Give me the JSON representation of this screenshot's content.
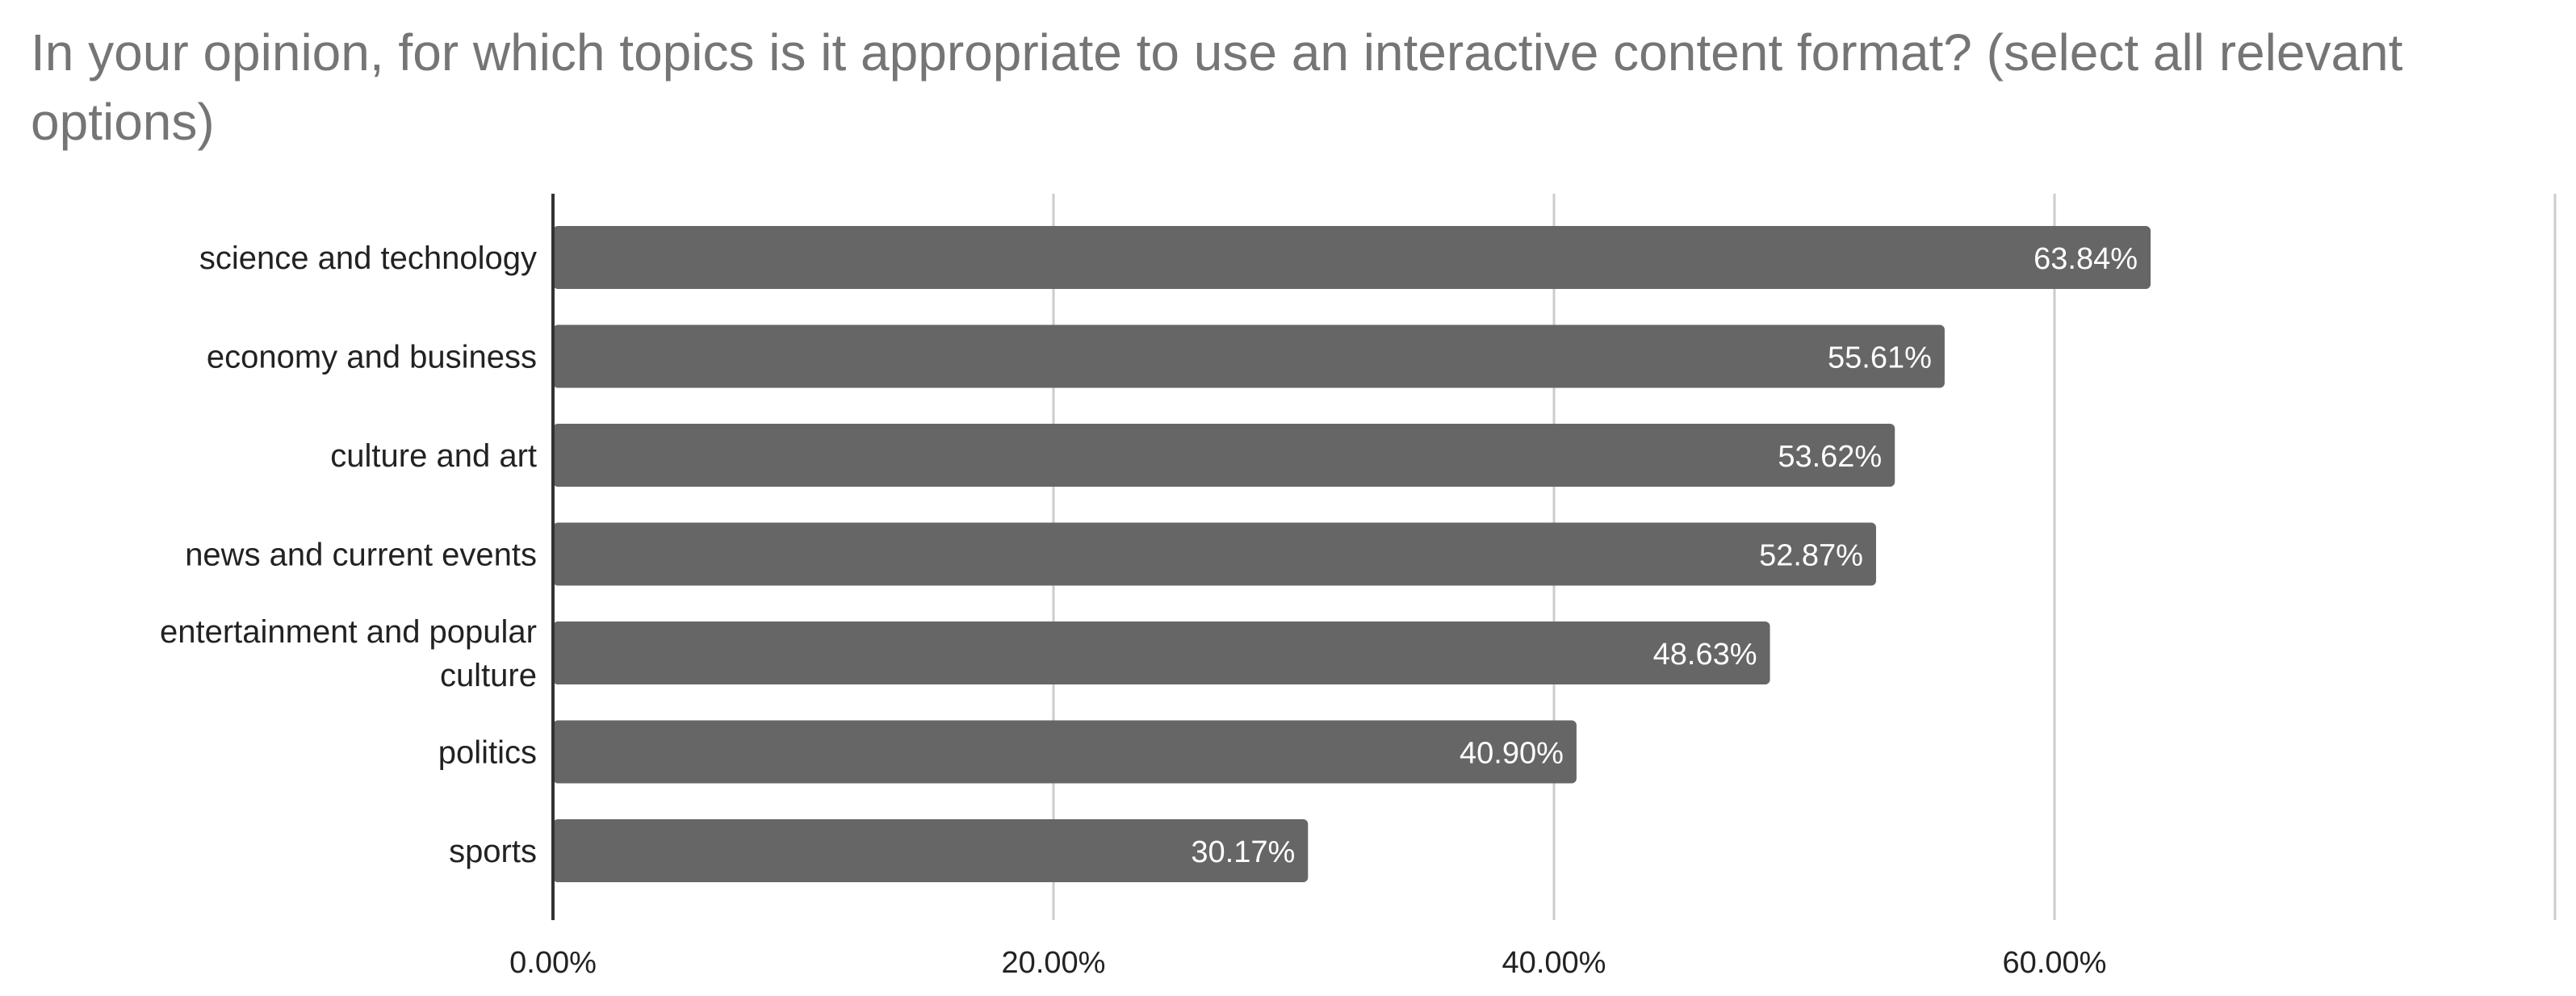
{
  "chart_data": {
    "type": "bar",
    "orientation": "horizontal",
    "title": "In your opinion, for which topics is it appropriate to use an interactive content format? (select all relevant options)",
    "categories": [
      [
        "science and technology"
      ],
      [
        "economy and business"
      ],
      [
        "culture and art"
      ],
      [
        "news and current events"
      ],
      [
        "entertainment and popular",
        "culture"
      ],
      [
        "politics"
      ],
      [
        "sports"
      ]
    ],
    "values": [
      63.84,
      55.61,
      53.62,
      52.87,
      48.63,
      40.9,
      30.17
    ],
    "data_labels": [
      "63.84%",
      "55.61%",
      "53.62%",
      "52.87%",
      "48.63%",
      "40.90%",
      "30.17%"
    ],
    "xlim": [
      0,
      80
    ],
    "x_ticks": [
      0,
      20,
      40,
      60
    ],
    "x_tick_labels": [
      "0.00%",
      "20.00%",
      "40.00%",
      "60.00%"
    ],
    "grid": true,
    "legend": "none",
    "colors": {
      "bar": "#666666",
      "title": "#757575",
      "grid": "#cccccc",
      "axis": "#333333",
      "data_label": "#ffffff"
    }
  }
}
